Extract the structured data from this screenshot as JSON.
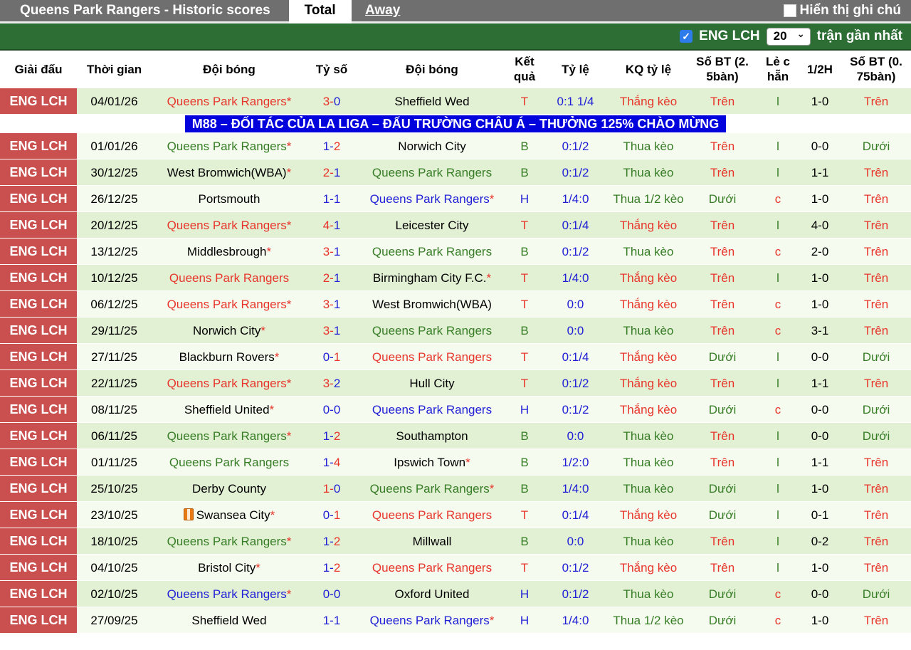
{
  "topbar": {
    "title": "Queens Park Rangers - Historic scores",
    "tabs": [
      {
        "label": "Total",
        "active": true
      },
      {
        "label": "Away",
        "active": false
      }
    ],
    "note_checkbox_label": "Hiển thị ghi chú",
    "note_checkbox_checked": false
  },
  "filterbar": {
    "league_checkbox_checked": true,
    "league_label": "ENG LCH",
    "match_count": "20",
    "suffix_label": "trận gần nhất"
  },
  "banner": {
    "text": "M88 – ĐỐI TÁC CỦA LA LIGA – ĐẤU TRƯỜNG CHÂU Á – THƯỞNG 125% CHÀO MỪNG"
  },
  "colors": {
    "accent_red": "#e8352b",
    "accent_green": "#367d26",
    "accent_blue": "#1f1fd6",
    "badge_red": "#c9504e",
    "bar_green": "#2d6e35",
    "banner_blue": "#0202dd",
    "row_dark": "#e2f0d4",
    "row_light": "#f5fbee"
  },
  "table": {
    "headers": [
      "Giải đấu",
      "Thời gian",
      "Đội bóng",
      "Tỷ số",
      "Đội bóng",
      "Kết\nquả",
      "Tỷ lệ",
      "KQ tỷ lệ",
      "Số BT (2.\n5bàn)",
      "Lẻ c\nhẵn",
      "1/2H",
      "Số BT (0.\n75bàn)"
    ],
    "rows": [
      {
        "league": "ENG LCH",
        "date": "04/01/26",
        "home": "Queens Park Rangers",
        "home_star": true,
        "home_color": "red",
        "home_icon": false,
        "s1": "3",
        "s2": "0",
        "s1_color": "red",
        "s2_color": "blue",
        "away": "Sheffield Wed",
        "away_star": false,
        "away_color": "black",
        "result": "T",
        "result_color": "red",
        "odds": "0:1 1/4",
        "odds_result": "Thắng kèo",
        "odds_result_color": "red",
        "ou25": "Trên",
        "ou25_color": "red",
        "oe": "l",
        "oe_color": "green",
        "half": "1-0",
        "ou075": "Trên",
        "ou075_color": "red",
        "banner_after": true
      },
      {
        "league": "ENG LCH",
        "date": "01/01/26",
        "home": "Queens Park Rangers",
        "home_star": true,
        "home_color": "green",
        "home_icon": false,
        "s1": "1",
        "s2": "2",
        "s1_color": "blue",
        "s2_color": "red",
        "away": "Norwich City",
        "away_star": false,
        "away_color": "black",
        "result": "B",
        "result_color": "green",
        "odds": "0:1/2",
        "odds_result": "Thua kèo",
        "odds_result_color": "green",
        "ou25": "Trên",
        "ou25_color": "red",
        "oe": "l",
        "oe_color": "green",
        "half": "0-0",
        "ou075": "Dưới",
        "ou075_color": "green",
        "banner_after": false
      },
      {
        "league": "ENG LCH",
        "date": "30/12/25",
        "home": "West Bromwich(WBA)",
        "home_star": true,
        "home_color": "black",
        "home_icon": false,
        "s1": "2",
        "s2": "1",
        "s1_color": "red",
        "s2_color": "blue",
        "away": "Queens Park Rangers",
        "away_star": false,
        "away_color": "green",
        "result": "B",
        "result_color": "green",
        "odds": "0:1/2",
        "odds_result": "Thua kèo",
        "odds_result_color": "green",
        "ou25": "Trên",
        "ou25_color": "red",
        "oe": "l",
        "oe_color": "green",
        "half": "1-1",
        "ou075": "Trên",
        "ou075_color": "red",
        "banner_after": false
      },
      {
        "league": "ENG LCH",
        "date": "26/12/25",
        "home": "Portsmouth",
        "home_star": false,
        "home_color": "black",
        "home_icon": false,
        "s1": "1",
        "s2": "1",
        "s1_color": "blue",
        "s2_color": "blue",
        "away": "Queens Park Rangers",
        "away_star": true,
        "away_color": "blue",
        "result": "H",
        "result_color": "blue",
        "odds": "1/4:0",
        "odds_result": "Thua 1/2 kèo",
        "odds_result_color": "green",
        "ou25": "Dưới",
        "ou25_color": "green",
        "oe": "c",
        "oe_color": "red",
        "half": "1-0",
        "ou075": "Trên",
        "ou075_color": "red",
        "banner_after": false
      },
      {
        "league": "ENG LCH",
        "date": "20/12/25",
        "home": "Queens Park Rangers",
        "home_star": true,
        "home_color": "red",
        "home_icon": false,
        "s1": "4",
        "s2": "1",
        "s1_color": "red",
        "s2_color": "blue",
        "away": "Leicester City",
        "away_star": false,
        "away_color": "black",
        "result": "T",
        "result_color": "red",
        "odds": "0:1/4",
        "odds_result": "Thắng kèo",
        "odds_result_color": "red",
        "ou25": "Trên",
        "ou25_color": "red",
        "oe": "l",
        "oe_color": "green",
        "half": "4-0",
        "ou075": "Trên",
        "ou075_color": "red",
        "banner_after": false
      },
      {
        "league": "ENG LCH",
        "date": "13/12/25",
        "home": "Middlesbrough",
        "home_star": true,
        "home_color": "black",
        "home_icon": false,
        "s1": "3",
        "s2": "1",
        "s1_color": "red",
        "s2_color": "blue",
        "away": "Queens Park Rangers",
        "away_star": false,
        "away_color": "green",
        "result": "B",
        "result_color": "green",
        "odds": "0:1/2",
        "odds_result": "Thua kèo",
        "odds_result_color": "green",
        "ou25": "Trên",
        "ou25_color": "red",
        "oe": "c",
        "oe_color": "red",
        "half": "2-0",
        "ou075": "Trên",
        "ou075_color": "red",
        "banner_after": false
      },
      {
        "league": "ENG LCH",
        "date": "10/12/25",
        "home": "Queens Park Rangers",
        "home_star": false,
        "home_color": "red",
        "home_icon": false,
        "s1": "2",
        "s2": "1",
        "s1_color": "red",
        "s2_color": "blue",
        "away": "Birmingham City F.C.",
        "away_star": true,
        "away_color": "black",
        "result": "T",
        "result_color": "red",
        "odds": "1/4:0",
        "odds_result": "Thắng kèo",
        "odds_result_color": "red",
        "ou25": "Trên",
        "ou25_color": "red",
        "oe": "l",
        "oe_color": "green",
        "half": "1-0",
        "ou075": "Trên",
        "ou075_color": "red",
        "banner_after": false
      },
      {
        "league": "ENG LCH",
        "date": "06/12/25",
        "home": "Queens Park Rangers",
        "home_star": true,
        "home_color": "red",
        "home_icon": false,
        "s1": "3",
        "s2": "1",
        "s1_color": "red",
        "s2_color": "blue",
        "away": "West Bromwich(WBA)",
        "away_star": false,
        "away_color": "black",
        "result": "T",
        "result_color": "red",
        "odds": "0:0",
        "odds_result": "Thắng kèo",
        "odds_result_color": "red",
        "ou25": "Trên",
        "ou25_color": "red",
        "oe": "c",
        "oe_color": "red",
        "half": "1-0",
        "ou075": "Trên",
        "ou075_color": "red",
        "banner_after": false
      },
      {
        "league": "ENG LCH",
        "date": "29/11/25",
        "home": "Norwich City",
        "home_star": true,
        "home_color": "black",
        "home_icon": false,
        "s1": "3",
        "s2": "1",
        "s1_color": "red",
        "s2_color": "blue",
        "away": "Queens Park Rangers",
        "away_star": false,
        "away_color": "green",
        "result": "B",
        "result_color": "green",
        "odds": "0:0",
        "odds_result": "Thua kèo",
        "odds_result_color": "green",
        "ou25": "Trên",
        "ou25_color": "red",
        "oe": "c",
        "oe_color": "red",
        "half": "3-1",
        "ou075": "Trên",
        "ou075_color": "red",
        "banner_after": false
      },
      {
        "league": "ENG LCH",
        "date": "27/11/25",
        "home": "Blackburn Rovers",
        "home_star": true,
        "home_color": "black",
        "home_icon": false,
        "s1": "0",
        "s2": "1",
        "s1_color": "blue",
        "s2_color": "red",
        "away": "Queens Park Rangers",
        "away_star": false,
        "away_color": "red",
        "result": "T",
        "result_color": "red",
        "odds": "0:1/4",
        "odds_result": "Thắng kèo",
        "odds_result_color": "red",
        "ou25": "Dưới",
        "ou25_color": "green",
        "oe": "l",
        "oe_color": "green",
        "half": "0-0",
        "ou075": "Dưới",
        "ou075_color": "green",
        "banner_after": false
      },
      {
        "league": "ENG LCH",
        "date": "22/11/25",
        "home": "Queens Park Rangers",
        "home_star": true,
        "home_color": "red",
        "home_icon": false,
        "s1": "3",
        "s2": "2",
        "s1_color": "red",
        "s2_color": "blue",
        "away": "Hull City",
        "away_star": false,
        "away_color": "black",
        "result": "T",
        "result_color": "red",
        "odds": "0:1/2",
        "odds_result": "Thắng kèo",
        "odds_result_color": "red",
        "ou25": "Trên",
        "ou25_color": "red",
        "oe": "l",
        "oe_color": "green",
        "half": "1-1",
        "ou075": "Trên",
        "ou075_color": "red",
        "banner_after": false
      },
      {
        "league": "ENG LCH",
        "date": "08/11/25",
        "home": "Sheffield United",
        "home_star": true,
        "home_color": "black",
        "home_icon": false,
        "s1": "0",
        "s2": "0",
        "s1_color": "blue",
        "s2_color": "blue",
        "away": "Queens Park Rangers",
        "away_star": false,
        "away_color": "blue",
        "result": "H",
        "result_color": "blue",
        "odds": "0:1/2",
        "odds_result": "Thắng kèo",
        "odds_result_color": "red",
        "ou25": "Dưới",
        "ou25_color": "green",
        "oe": "c",
        "oe_color": "red",
        "half": "0-0",
        "ou075": "Dưới",
        "ou075_color": "green",
        "banner_after": false
      },
      {
        "league": "ENG LCH",
        "date": "06/11/25",
        "home": "Queens Park Rangers",
        "home_star": true,
        "home_color": "green",
        "home_icon": false,
        "s1": "1",
        "s2": "2",
        "s1_color": "blue",
        "s2_color": "red",
        "away": "Southampton",
        "away_star": false,
        "away_color": "black",
        "result": "B",
        "result_color": "green",
        "odds": "0:0",
        "odds_result": "Thua kèo",
        "odds_result_color": "green",
        "ou25": "Trên",
        "ou25_color": "red",
        "oe": "l",
        "oe_color": "green",
        "half": "0-0",
        "ou075": "Dưới",
        "ou075_color": "green",
        "banner_after": false
      },
      {
        "league": "ENG LCH",
        "date": "01/11/25",
        "home": "Queens Park Rangers",
        "home_star": false,
        "home_color": "green",
        "home_icon": false,
        "s1": "1",
        "s2": "4",
        "s1_color": "blue",
        "s2_color": "red",
        "away": "Ipswich Town",
        "away_star": true,
        "away_color": "black",
        "result": "B",
        "result_color": "green",
        "odds": "1/2:0",
        "odds_result": "Thua kèo",
        "odds_result_color": "green",
        "ou25": "Trên",
        "ou25_color": "red",
        "oe": "l",
        "oe_color": "green",
        "half": "1-1",
        "ou075": "Trên",
        "ou075_color": "red",
        "banner_after": false
      },
      {
        "league": "ENG LCH",
        "date": "25/10/25",
        "home": "Derby County",
        "home_star": false,
        "home_color": "black",
        "home_icon": false,
        "s1": "1",
        "s2": "0",
        "s1_color": "red",
        "s2_color": "blue",
        "away": "Queens Park Rangers",
        "away_star": true,
        "away_color": "green",
        "result": "B",
        "result_color": "green",
        "odds": "1/4:0",
        "odds_result": "Thua kèo",
        "odds_result_color": "green",
        "ou25": "Dưới",
        "ou25_color": "green",
        "oe": "l",
        "oe_color": "green",
        "half": "1-0",
        "ou075": "Trên",
        "ou075_color": "red",
        "banner_after": false
      },
      {
        "league": "ENG LCH",
        "date": "23/10/25",
        "home": "Swansea City",
        "home_star": true,
        "home_color": "black",
        "home_icon": true,
        "s1": "0",
        "s2": "1",
        "s1_color": "blue",
        "s2_color": "red",
        "away": "Queens Park Rangers",
        "away_star": false,
        "away_color": "red",
        "result": "T",
        "result_color": "red",
        "odds": "0:1/4",
        "odds_result": "Thắng kèo",
        "odds_result_color": "red",
        "ou25": "Dưới",
        "ou25_color": "green",
        "oe": "l",
        "oe_color": "green",
        "half": "0-1",
        "ou075": "Trên",
        "ou075_color": "red",
        "banner_after": false
      },
      {
        "league": "ENG LCH",
        "date": "18/10/25",
        "home": "Queens Park Rangers",
        "home_star": true,
        "home_color": "green",
        "home_icon": false,
        "s1": "1",
        "s2": "2",
        "s1_color": "blue",
        "s2_color": "red",
        "away": "Millwall",
        "away_star": false,
        "away_color": "black",
        "result": "B",
        "result_color": "green",
        "odds": "0:0",
        "odds_result": "Thua kèo",
        "odds_result_color": "green",
        "ou25": "Trên",
        "ou25_color": "red",
        "oe": "l",
        "oe_color": "green",
        "half": "0-2",
        "ou075": "Trên",
        "ou075_color": "red",
        "banner_after": false
      },
      {
        "league": "ENG LCH",
        "date": "04/10/25",
        "home": "Bristol City",
        "home_star": true,
        "home_color": "black",
        "home_icon": false,
        "s1": "1",
        "s2": "2",
        "s1_color": "blue",
        "s2_color": "red",
        "away": "Queens Park Rangers",
        "away_star": false,
        "away_color": "red",
        "result": "T",
        "result_color": "red",
        "odds": "0:1/2",
        "odds_result": "Thắng kèo",
        "odds_result_color": "red",
        "ou25": "Trên",
        "ou25_color": "red",
        "oe": "l",
        "oe_color": "green",
        "half": "1-0",
        "ou075": "Trên",
        "ou075_color": "red",
        "banner_after": false
      },
      {
        "league": "ENG LCH",
        "date": "02/10/25",
        "home": "Queens Park Rangers",
        "home_star": true,
        "home_color": "blue",
        "home_icon": false,
        "s1": "0",
        "s2": "0",
        "s1_color": "blue",
        "s2_color": "blue",
        "away": "Oxford United",
        "away_star": false,
        "away_color": "black",
        "result": "H",
        "result_color": "blue",
        "odds": "0:1/2",
        "odds_result": "Thua kèo",
        "odds_result_color": "green",
        "ou25": "Dưới",
        "ou25_color": "green",
        "oe": "c",
        "oe_color": "red",
        "half": "0-0",
        "ou075": "Dưới",
        "ou075_color": "green",
        "banner_after": false
      },
      {
        "league": "ENG LCH",
        "date": "27/09/25",
        "home": "Sheffield Wed",
        "home_star": false,
        "home_color": "black",
        "home_icon": false,
        "s1": "1",
        "s2": "1",
        "s1_color": "blue",
        "s2_color": "blue",
        "away": "Queens Park Rangers",
        "away_star": true,
        "away_color": "blue",
        "result": "H",
        "result_color": "blue",
        "odds": "1/4:0",
        "odds_result": "Thua 1/2 kèo",
        "odds_result_color": "green",
        "ou25": "Dưới",
        "ou25_color": "green",
        "oe": "c",
        "oe_color": "red",
        "half": "1-0",
        "ou075": "Trên",
        "ou075_color": "red",
        "banner_after": false
      }
    ]
  }
}
